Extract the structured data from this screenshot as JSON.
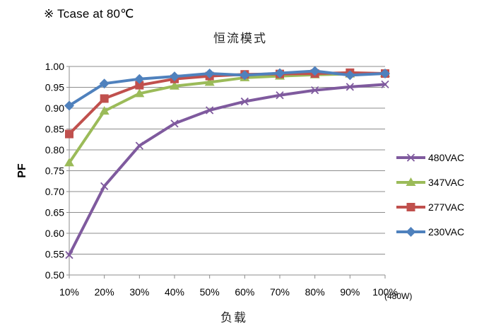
{
  "header": {
    "note": "※ Tcase at 80℃"
  },
  "chart_data": {
    "type": "line",
    "title": "恒流模式",
    "xlabel": "负载",
    "ylabel": "PF",
    "x_unit_note": "(480W)",
    "categories": [
      "10%",
      "20%",
      "30%",
      "40%",
      "50%",
      "60%",
      "70%",
      "80%",
      "90%",
      "100%"
    ],
    "ylim": [
      0.5,
      1.0
    ],
    "yticks": [
      "0.50",
      "0.55",
      "0.60",
      "0.65",
      "0.70",
      "0.75",
      "0.80",
      "0.85",
      "0.90",
      "0.95",
      "1.00"
    ],
    "grid": true,
    "legend_position": "right",
    "series": [
      {
        "name": "480VAC",
        "color": "#7f5a9e",
        "marker": "x",
        "values": [
          0.548,
          0.713,
          0.81,
          0.863,
          0.895,
          0.916,
          0.931,
          0.943,
          0.951,
          0.957
        ]
      },
      {
        "name": "347VAC",
        "color": "#9bbb59",
        "marker": "triangle",
        "values": [
          0.769,
          0.893,
          0.935,
          0.953,
          0.962,
          0.973,
          0.977,
          0.98,
          0.982,
          0.983
        ]
      },
      {
        "name": "277VAC",
        "color": "#c0504d",
        "marker": "square",
        "values": [
          0.838,
          0.923,
          0.955,
          0.97,
          0.977,
          0.981,
          0.982,
          0.983,
          0.985,
          0.983
        ]
      },
      {
        "name": "230VAC",
        "color": "#4f81bd",
        "marker": "diamond",
        "values": [
          0.906,
          0.959,
          0.97,
          0.976,
          0.983,
          0.979,
          0.984,
          0.989,
          0.979,
          0.983
        ]
      }
    ]
  }
}
